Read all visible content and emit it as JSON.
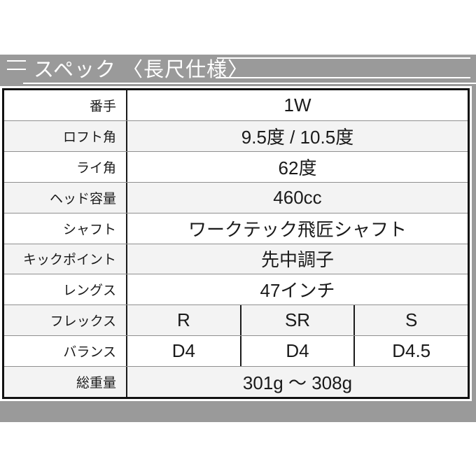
{
  "header": {
    "title": "スペック 〈長尺仕様〉"
  },
  "colors": {
    "band_gray": "#9a9a9a",
    "row_alt_gray": "#f3f3f3",
    "border_black": "#111111",
    "text_dark": "#1a1a1a",
    "title_white": "#ffffff"
  },
  "table": {
    "rows": [
      {
        "label": "番手",
        "value": "1W"
      },
      {
        "label": "ロフト角",
        "value": "9.5度 / 10.5度"
      },
      {
        "label": "ライ角",
        "value": "62度"
      },
      {
        "label": "ヘッド容量",
        "value": "460cc"
      },
      {
        "label": "シャフト",
        "value": "ワークテック飛匠シャフト"
      },
      {
        "label": "キックポイント",
        "value": "先中調子"
      },
      {
        "label": "レングス",
        "value": "47インチ"
      },
      {
        "label": "フレックス",
        "values": [
          "R",
          "SR",
          "S"
        ]
      },
      {
        "label": "バランス",
        "values": [
          "D4",
          "D4",
          "D4.5"
        ]
      },
      {
        "label": "総重量",
        "value": "301g ～ 308g"
      }
    ]
  }
}
